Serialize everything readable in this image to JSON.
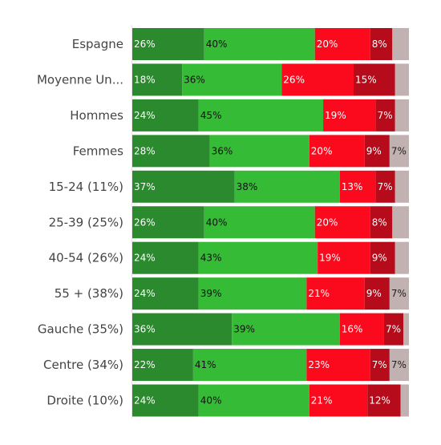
{
  "chart_data": {
    "type": "bar",
    "orientation": "horizontal",
    "stacked": true,
    "normalized": true,
    "title": "",
    "xlabel": "",
    "ylabel": "",
    "xlim": [
      0,
      100
    ],
    "grid": false,
    "legend": "none",
    "categories": [
      "Espagne",
      "Moyenne Un...",
      "Hommes",
      "Femmes",
      "15-24 (11%)",
      "25-39 (25%)",
      "40-54 (26%)",
      "55 + (38%)",
      "Gauche (35%)",
      "Centre (34%)",
      "Droite (10%)"
    ],
    "series": [
      {
        "color": "#2b8a2e",
        "label_color": "#ffffff",
        "values": [
          26,
          18,
          24,
          28,
          37,
          26,
          24,
          24,
          36,
          22,
          24
        ]
      },
      {
        "color": "#36bb37",
        "label_color": "#111111",
        "values": [
          40,
          36,
          45,
          36,
          38,
          40,
          43,
          39,
          39,
          41,
          40
        ]
      },
      {
        "color": "#fb0a1d",
        "label_color": "#ffffff",
        "values": [
          20,
          26,
          19,
          20,
          13,
          20,
          19,
          21,
          16,
          23,
          21
        ]
      },
      {
        "color": "#b50b1a",
        "label_color": "#ffffff",
        "values": [
          8,
          15,
          7,
          9,
          7,
          8,
          9,
          9,
          7,
          7,
          12
        ]
      },
      {
        "color": "#c2b1b1",
        "label_color": "#222222",
        "values": [
          6,
          5,
          5,
          7,
          5,
          6,
          5,
          7,
          2,
          7,
          3
        ]
      }
    ],
    "labels": [
      [
        "26%",
        "40%",
        "20%",
        "8%",
        ""
      ],
      [
        "18%",
        "36%",
        "26%",
        "15%",
        ""
      ],
      [
        "24%",
        "45%",
        "19%",
        "7%",
        ""
      ],
      [
        "28%",
        "36%",
        "20%",
        "9%",
        "7%"
      ],
      [
        "37%",
        "38%",
        "13%",
        "7%",
        ""
      ],
      [
        "26%",
        "40%",
        "20%",
        "8%",
        ""
      ],
      [
        "24%",
        "43%",
        "19%",
        "9%",
        ""
      ],
      [
        "24%",
        "39%",
        "21%",
        "9%",
        "7%"
      ],
      [
        "36%",
        "39%",
        "16%",
        "7%",
        ""
      ],
      [
        "22%",
        "41%",
        "23%",
        "7%",
        "7%"
      ],
      [
        "24%",
        "40%",
        "21%",
        "12%",
        ""
      ]
    ]
  }
}
